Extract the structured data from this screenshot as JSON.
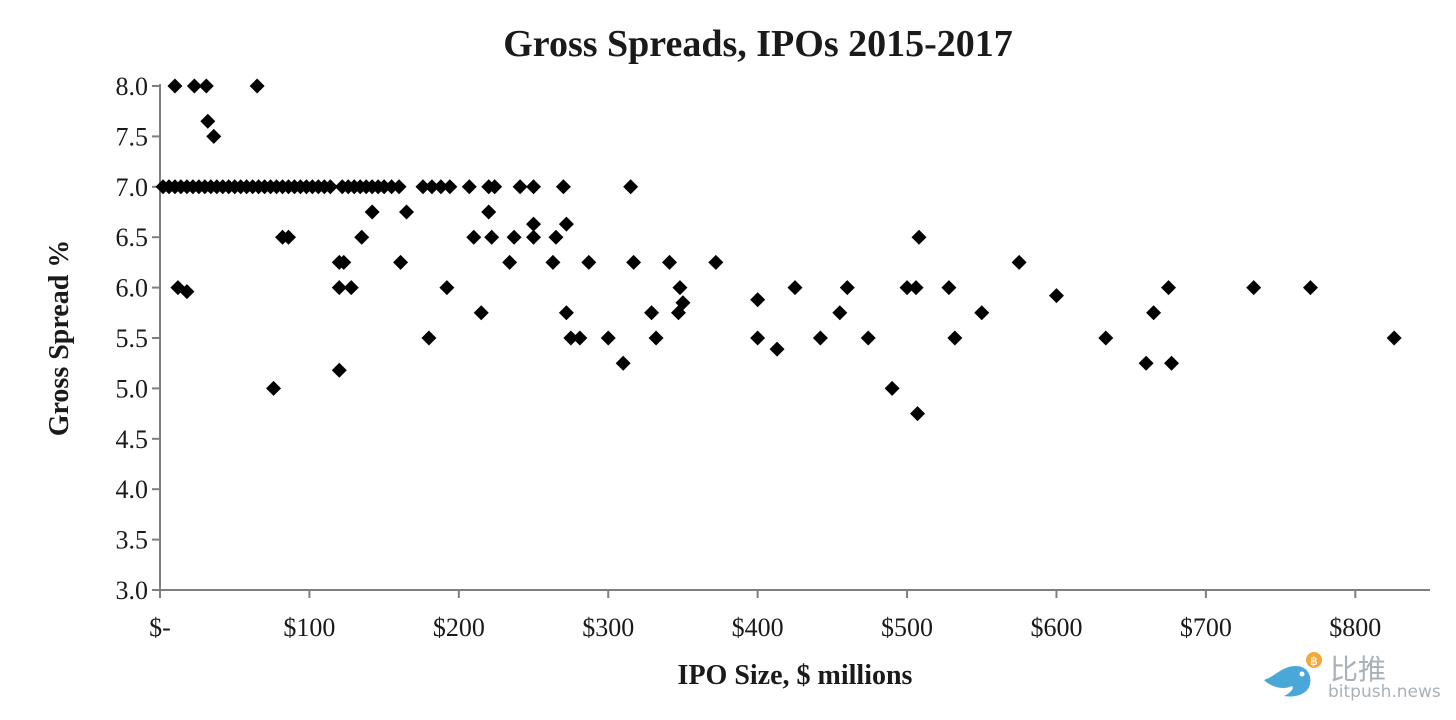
{
  "chart_data": {
    "type": "scatter",
    "title": "Gross Spreads, IPOs 2015-2017",
    "xlabel": "IPO Size, $ millions",
    "ylabel": "Gross Spread %",
    "xlim": [
      0,
      850
    ],
    "ylim": [
      3.0,
      8.0
    ],
    "x_ticks": [
      {
        "value": 0,
        "label": "$-"
      },
      {
        "value": 100,
        "label": "$100"
      },
      {
        "value": 200,
        "label": "$200"
      },
      {
        "value": 300,
        "label": "$300"
      },
      {
        "value": 400,
        "label": "$400"
      },
      {
        "value": 500,
        "label": "$500"
      },
      {
        "value": 600,
        "label": "$600"
      },
      {
        "value": 700,
        "label": "$700"
      },
      {
        "value": 800,
        "label": "$800"
      }
    ],
    "y_ticks": [
      {
        "value": 3.0,
        "label": "3.0"
      },
      {
        "value": 3.5,
        "label": "3.5"
      },
      {
        "value": 4.0,
        "label": "4.0"
      },
      {
        "value": 4.5,
        "label": "4.5"
      },
      {
        "value": 5.0,
        "label": "5.0"
      },
      {
        "value": 5.5,
        "label": "5.5"
      },
      {
        "value": 6.0,
        "label": "6.0"
      },
      {
        "value": 6.5,
        "label": "6.5"
      },
      {
        "value": 7.0,
        "label": "7.0"
      },
      {
        "value": 7.5,
        "label": "7.5"
      },
      {
        "value": 8.0,
        "label": "8.0"
      }
    ],
    "grid": false,
    "marker": "diamond",
    "marker_color": "#000000",
    "points": [
      [
        10,
        8.0
      ],
      [
        23,
        8.0
      ],
      [
        31,
        8.0
      ],
      [
        65,
        8.0
      ],
      [
        32,
        7.65
      ],
      [
        36,
        7.5
      ],
      [
        2,
        7.0
      ],
      [
        6,
        7.0
      ],
      [
        10,
        7.0
      ],
      [
        14,
        7.0
      ],
      [
        18,
        7.0
      ],
      [
        22,
        7.0
      ],
      [
        26,
        7.0
      ],
      [
        30,
        7.0
      ],
      [
        34,
        7.0
      ],
      [
        38,
        7.0
      ],
      [
        42,
        7.0
      ],
      [
        46,
        7.0
      ],
      [
        50,
        7.0
      ],
      [
        54,
        7.0
      ],
      [
        58,
        7.0
      ],
      [
        62,
        7.0
      ],
      [
        66,
        7.0
      ],
      [
        70,
        7.0
      ],
      [
        74,
        7.0
      ],
      [
        78,
        7.0
      ],
      [
        82,
        7.0
      ],
      [
        86,
        7.0
      ],
      [
        90,
        7.0
      ],
      [
        94,
        7.0
      ],
      [
        98,
        7.0
      ],
      [
        102,
        7.0
      ],
      [
        106,
        7.0
      ],
      [
        110,
        7.0
      ],
      [
        114,
        7.0
      ],
      [
        122,
        7.0
      ],
      [
        126,
        7.0
      ],
      [
        130,
        7.0
      ],
      [
        134,
        7.0
      ],
      [
        138,
        7.0
      ],
      [
        142,
        7.0
      ],
      [
        146,
        7.0
      ],
      [
        150,
        7.0
      ],
      [
        155,
        7.0
      ],
      [
        160,
        7.0
      ],
      [
        176,
        7.0
      ],
      [
        182,
        7.0
      ],
      [
        188,
        7.0
      ],
      [
        194,
        7.0
      ],
      [
        207,
        7.0
      ],
      [
        220,
        7.0
      ],
      [
        224,
        7.0
      ],
      [
        241,
        7.0
      ],
      [
        250,
        7.0
      ],
      [
        270,
        7.0
      ],
      [
        315,
        7.0
      ],
      [
        142,
        6.75
      ],
      [
        165,
        6.75
      ],
      [
        220,
        6.75
      ],
      [
        272,
        6.63
      ],
      [
        250,
        6.63
      ],
      [
        82,
        6.5
      ],
      [
        86,
        6.5
      ],
      [
        135,
        6.5
      ],
      [
        210,
        6.5
      ],
      [
        222,
        6.5
      ],
      [
        237,
        6.5
      ],
      [
        250,
        6.5
      ],
      [
        265,
        6.5
      ],
      [
        508,
        6.5
      ],
      [
        120,
        6.25
      ],
      [
        123,
        6.25
      ],
      [
        161,
        6.25
      ],
      [
        234,
        6.25
      ],
      [
        263,
        6.25
      ],
      [
        287,
        6.25
      ],
      [
        317,
        6.25
      ],
      [
        341,
        6.25
      ],
      [
        372,
        6.25
      ],
      [
        575,
        6.25
      ],
      [
        12,
        6.0
      ],
      [
        120,
        6.0
      ],
      [
        128,
        6.0
      ],
      [
        192,
        6.0
      ],
      [
        348,
        6.0
      ],
      [
        425,
        6.0
      ],
      [
        460,
        6.0
      ],
      [
        500,
        6.0
      ],
      [
        506,
        6.0
      ],
      [
        528,
        6.0
      ],
      [
        675,
        6.0
      ],
      [
        732,
        6.0
      ],
      [
        770,
        6.0
      ],
      [
        18,
        5.96
      ],
      [
        600,
        5.92
      ],
      [
        400,
        5.88
      ],
      [
        350,
        5.85
      ],
      [
        215,
        5.75
      ],
      [
        272,
        5.75
      ],
      [
        329,
        5.75
      ],
      [
        347,
        5.75
      ],
      [
        455,
        5.75
      ],
      [
        550,
        5.75
      ],
      [
        665,
        5.75
      ],
      [
        180,
        5.5
      ],
      [
        275,
        5.5
      ],
      [
        281,
        5.5
      ],
      [
        300,
        5.5
      ],
      [
        332,
        5.5
      ],
      [
        400,
        5.5
      ],
      [
        442,
        5.5
      ],
      [
        474,
        5.5
      ],
      [
        532,
        5.5
      ],
      [
        633,
        5.5
      ],
      [
        826,
        5.5
      ],
      [
        413,
        5.39
      ],
      [
        120,
        5.18
      ],
      [
        310,
        5.25
      ],
      [
        660,
        5.25
      ],
      [
        677,
        5.25
      ],
      [
        76,
        5.0
      ],
      [
        490,
        5.0
      ],
      [
        507,
        4.75
      ]
    ]
  },
  "watermark": {
    "cn": "比推",
    "en": "bitpush.news",
    "bird_color": "#4aa8d8",
    "coin_color": "#f2a93b"
  }
}
